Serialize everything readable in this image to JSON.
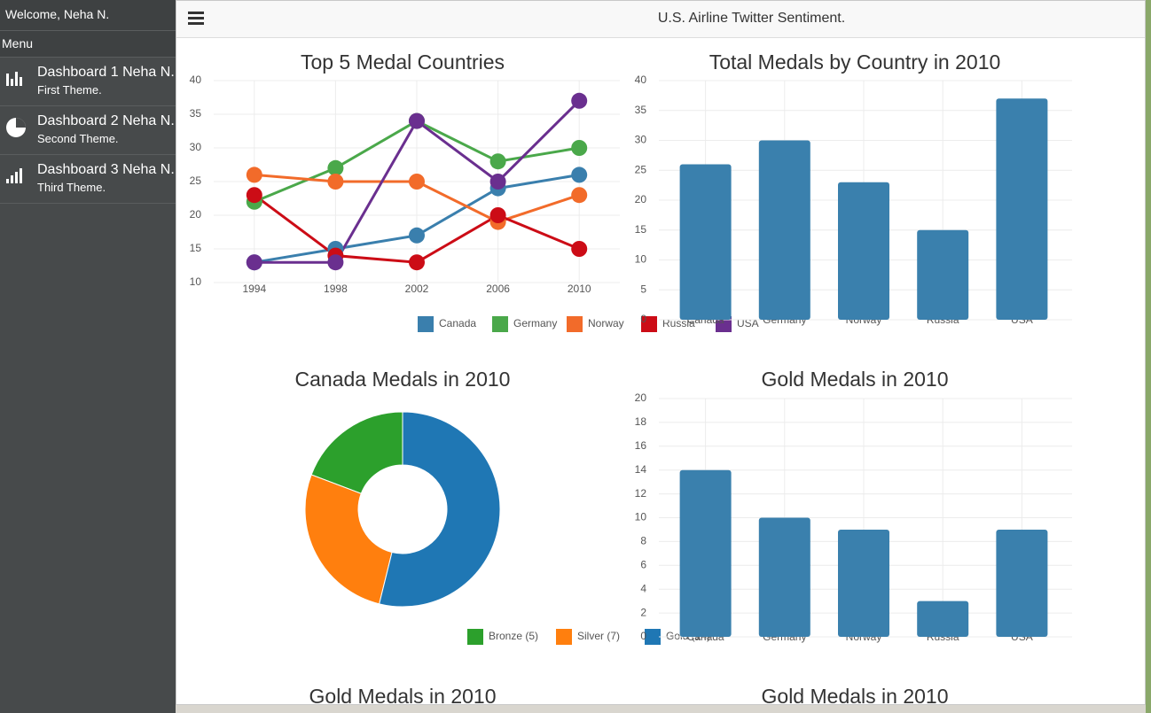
{
  "sidebar": {
    "welcome": "Welcome, Neha N.",
    "menu": "Menu",
    "items": [
      {
        "title": "Dashboard 1 Neha N.",
        "subtitle": "First Theme."
      },
      {
        "title": "Dashboard 2 Neha N.",
        "subtitle": "Second Theme."
      },
      {
        "title": "Dashboard 3 Neha N.",
        "subtitle": "Third Theme."
      }
    ]
  },
  "header": {
    "title": "U.S. Airline Twitter Sentiment."
  },
  "chart_data": [
    {
      "type": "line",
      "title": "Top 5 Medal Countries",
      "categories": [
        "1994",
        "1998",
        "2002",
        "2006",
        "2010"
      ],
      "series": [
        {
          "name": "Canada",
          "color": "#3a7fad",
          "values": [
            13,
            15,
            17,
            24,
            26
          ]
        },
        {
          "name": "Germany",
          "color": "#4aa84a",
          "values": [
            22,
            27,
            34,
            28,
            30
          ]
        },
        {
          "name": "Norway",
          "color": "#f26b2a",
          "values": [
            26,
            25,
            25,
            19,
            23
          ]
        },
        {
          "name": "Russia",
          "color": "#cc0c16",
          "values": [
            23,
            14,
            13,
            20,
            15
          ]
        },
        {
          "name": "USA",
          "color": "#6a2f8f",
          "values": [
            13,
            13,
            34,
            25,
            37
          ]
        }
      ],
      "ylim": [
        10,
        40
      ],
      "yticks": [
        10,
        15,
        20,
        25,
        30,
        35,
        40
      ],
      "grid": true
    },
    {
      "type": "bar",
      "title": "Total Medals by Country in 2010",
      "categories": [
        "Canada",
        "Germany",
        "Norway",
        "Russia",
        "USA"
      ],
      "values": [
        26,
        30,
        23,
        15,
        37
      ],
      "color": "#3a80ad",
      "ylim": [
        0,
        40
      ],
      "yticks": [
        0,
        5,
        10,
        15,
        20,
        25,
        30,
        35,
        40
      ],
      "grid": true
    },
    {
      "type": "doughnut",
      "title": "Canada Medals in 2010",
      "categories": [
        "Bronze (5)",
        "Silver (7)",
        "Gold (14)"
      ],
      "values": [
        5,
        7,
        14
      ],
      "colors": [
        "#2ca02c",
        "#ff7f0e",
        "#1f77b4"
      ]
    },
    {
      "type": "bar",
      "title": "Gold Medals in 2010",
      "categories": [
        "Canada",
        "Germany",
        "Norway",
        "Russia",
        "USA"
      ],
      "values": [
        14,
        10,
        9,
        3,
        9
      ],
      "color": "#3a80ad",
      "ylim": [
        0,
        20
      ],
      "yticks": [
        0,
        2,
        4,
        6,
        8,
        10,
        12,
        14,
        16,
        18,
        20
      ],
      "grid": true
    },
    {
      "type": "bar",
      "title": "Gold Medals in 2010"
    },
    {
      "type": "bar",
      "title": "Gold Medals in 2010"
    }
  ]
}
